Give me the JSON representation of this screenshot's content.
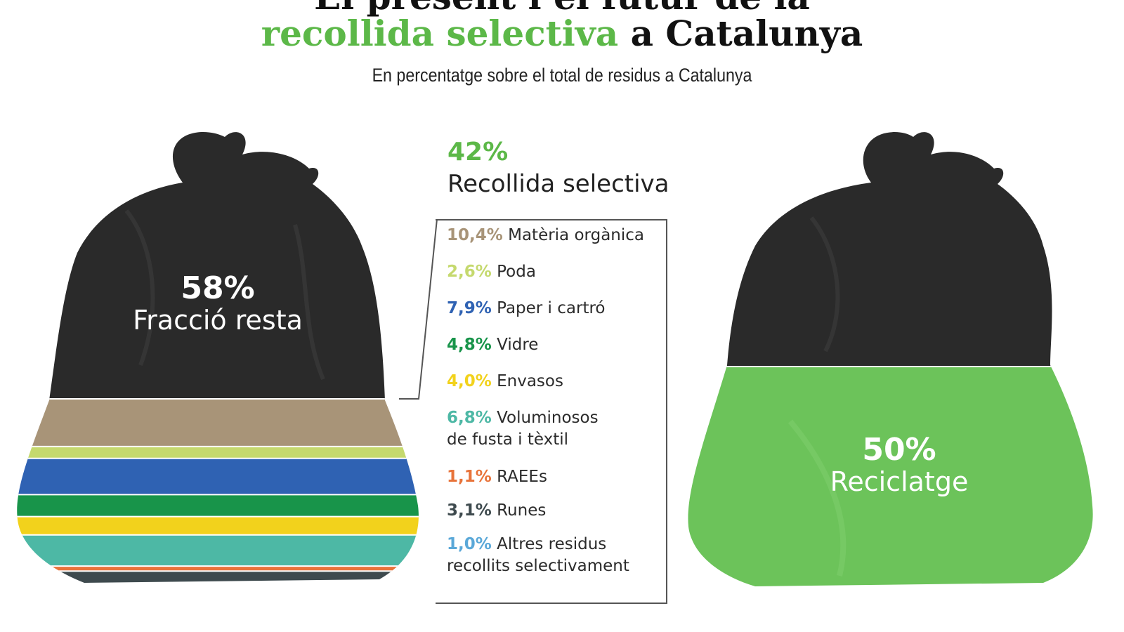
{
  "title": {
    "line1": "El present i el futur de la",
    "line2_green": "recollida selectiva",
    "line2_rest": " a Catalunya"
  },
  "subtitle": "En percentatge sobre el total de residus a Catalunya",
  "left_bag": {
    "pct": "58%",
    "label": "Fracció resta"
  },
  "right_bag": {
    "pct": "50%",
    "label": "Reciclatge"
  },
  "selective": {
    "pct": "42%",
    "label": "Recollida selectiva"
  },
  "colors": {
    "accent_green": "#5cb848",
    "bag_dark": "#2a2a2a",
    "recycle_green": "#6cc35a"
  },
  "chart_data": [
    {
      "type": "stacked-bar",
      "title": "El present i el futur de la recollida selectiva a Catalunya",
      "subtitle": "En percentatge sobre el total de residus a Catalunya",
      "bag": "present",
      "segments": [
        {
          "name": "Fracció resta",
          "value": 58,
          "color": "#2a2a2a"
        },
        {
          "name": "Matèria orgànica",
          "value": 10.4,
          "color": "#a89478"
        },
        {
          "name": "Poda",
          "value": 2.6,
          "color": "#c5d96e"
        },
        {
          "name": "Paper i cartró",
          "value": 7.9,
          "color": "#2f62b3"
        },
        {
          "name": "Vidre",
          "value": 4.8,
          "color": "#18944a"
        },
        {
          "name": "Envasos",
          "value": 4.0,
          "color": "#f2d21c"
        },
        {
          "name": "Voluminosos de fusta i tèxtil",
          "value": 6.8,
          "color": "#4db8a5"
        },
        {
          "name": "RAEEs",
          "value": 1.1,
          "color": "#e8733a"
        },
        {
          "name": "Runes",
          "value": 3.1,
          "color": "#3e4a4e"
        },
        {
          "name": "Altres residus recollits selectivament",
          "value": 1.0,
          "color": "#5aa8d8"
        }
      ],
      "selective_total": 42
    },
    {
      "type": "stacked-bar",
      "bag": "future",
      "segments": [
        {
          "name": "Resta",
          "value": 50,
          "color": "#2a2a2a"
        },
        {
          "name": "Reciclatge",
          "value": 50,
          "color": "#6cc35a"
        }
      ]
    }
  ],
  "legend": [
    {
      "value": "10,4%",
      "label": "Matèria orgànica",
      "color": "#a89478"
    },
    {
      "value": "2,6%",
      "label": "Poda",
      "color": "#c5d96e"
    },
    {
      "value": "7,9%",
      "label": "Paper i cartró",
      "color": "#2f62b3"
    },
    {
      "value": "4,8%",
      "label": "Vidre",
      "color": "#18944a"
    },
    {
      "value": "4,0%",
      "label": "Envasos",
      "color": "#f2d21c"
    },
    {
      "value": "6,8%",
      "label": "Voluminosos",
      "label2": "de fusta i tèxtil",
      "color": "#4db8a5"
    },
    {
      "value": "1,1%",
      "label": "RAEEs",
      "color": "#e8733a"
    },
    {
      "value": "3,1%",
      "label": "Runes",
      "color": "#3e4a4e"
    },
    {
      "value": "1,0%",
      "label": "Altres residus",
      "label2": "recollits selectivament",
      "color": "#5aa8d8"
    }
  ]
}
